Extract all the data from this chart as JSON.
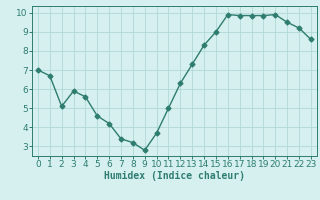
{
  "x": [
    0,
    1,
    2,
    3,
    4,
    5,
    6,
    7,
    8,
    9,
    10,
    11,
    12,
    13,
    14,
    15,
    16,
    17,
    18,
    19,
    20,
    21,
    22,
    23
  ],
  "y": [
    7.0,
    6.7,
    5.1,
    5.9,
    5.6,
    4.6,
    4.2,
    3.4,
    3.2,
    2.8,
    3.7,
    5.0,
    6.3,
    7.3,
    8.3,
    9.0,
    9.9,
    9.85,
    9.85,
    9.85,
    9.9,
    9.5,
    9.2,
    8.6
  ],
  "line_color": "#2e7d6e",
  "marker": "D",
  "markersize": 2.5,
  "linewidth": 1.0,
  "background_color": "#d6f0f0",
  "grid_color": "#b0d8d8",
  "xlabel": "Humidex (Indice chaleur)",
  "xlim": [
    -0.5,
    23.5
  ],
  "ylim": [
    2.5,
    10.35
  ],
  "yticks": [
    3,
    4,
    5,
    6,
    7,
    8,
    9,
    10
  ],
  "xticks": [
    0,
    1,
    2,
    3,
    4,
    5,
    6,
    7,
    8,
    9,
    10,
    11,
    12,
    13,
    14,
    15,
    16,
    17,
    18,
    19,
    20,
    21,
    22,
    23
  ],
  "xlabel_fontsize": 7,
  "tick_fontsize": 6.5,
  "axis_color": "#2e7d6e",
  "spine_color": "#2e7d6e"
}
